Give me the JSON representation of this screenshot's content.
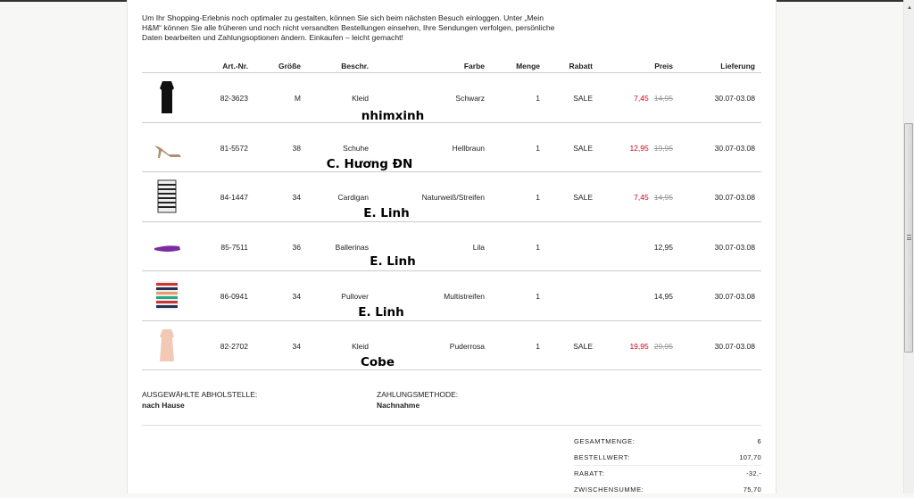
{
  "intro": "Um Ihr Shopping-Erlebnis noch optimaler zu gestalten, können Sie sich beim nächsten Besuch einloggen. Unter „Mein H&M“ können Sie alle früheren und noch nicht versandten Bestellungen einsehen, Ihre Sendungen verfolgen, persönliche Daten bearbeiten und Zahlungsoptionen ändern. Einkaufen – leicht gemacht!",
  "columns": {
    "art": "Art.-Nr.",
    "size": "Größe",
    "desc": "Beschr.",
    "color": "Farbe",
    "qty": "Menge",
    "discount": "Rabatt",
    "price": "Preis",
    "delivery": "Lieferung"
  },
  "rows": [
    {
      "image": "black-dress",
      "art": "82-3623",
      "size": "M",
      "desc": "Kleid",
      "color": "Schwarz",
      "qty": "1",
      "discount": "SALE",
      "price": "7,45",
      "old_price": "14,95",
      "delivery": "30.07-03.08",
      "tag": "nhimxinh"
    },
    {
      "image": "beige-heels",
      "art": "81-5572",
      "size": "38",
      "desc": "Schuhe",
      "color": "Hellbraun",
      "qty": "1",
      "discount": "SALE",
      "price": "12,95",
      "old_price": "19,95",
      "delivery": "30.07-03.08",
      "tag": "C. Hương ĐN"
    },
    {
      "image": "striped-cardigan",
      "art": "84-1447",
      "size": "34",
      "desc": "Cardigan",
      "color": "Naturweiß/Streifen",
      "qty": "1",
      "discount": "SALE",
      "price": "7,45",
      "old_price": "14,95",
      "delivery": "30.07-03.08",
      "tag": "E. Linh"
    },
    {
      "image": "purple-ballerinas",
      "art": "85-7511",
      "size": "36",
      "desc": "Ballerinas",
      "color": "Lila",
      "qty": "1",
      "discount": "",
      "price": "12,95",
      "old_price": "",
      "delivery": "30.07-03.08",
      "tag": "E. Linh"
    },
    {
      "image": "striped-pullover",
      "art": "86-0941",
      "size": "34",
      "desc": "Pullover",
      "color": "Multistreifen",
      "qty": "1",
      "discount": "",
      "price": "14,95",
      "old_price": "",
      "delivery": "30.07-03.08",
      "tag": "E. Linh"
    },
    {
      "image": "pink-dress",
      "art": "82-2702",
      "size": "34",
      "desc": "Kleid",
      "color": "Puderrosa",
      "qty": "1",
      "discount": "SALE",
      "price": "19,95",
      "old_price": "29,95",
      "delivery": "30.07-03.08",
      "tag": "Cobe"
    }
  ],
  "pickup": {
    "label": "AUSGEWÄHLTE ABHOLSTELLE:",
    "value": "nach Hause"
  },
  "payment": {
    "label": "ZAHLUNGSMETHODE:",
    "value": "Nachnahme"
  },
  "summary": [
    {
      "label": "GESAMTMENGE:",
      "value": "6"
    },
    {
      "label": "BESTELLWERT:",
      "value": "107,70"
    },
    {
      "label": "RABATT:",
      "value": "-32,-"
    },
    {
      "label": "ZWISCHENSUMME:",
      "value": "75,70"
    }
  ],
  "colors": {
    "sale_price": "#d0021b",
    "old_price": "#999999"
  }
}
